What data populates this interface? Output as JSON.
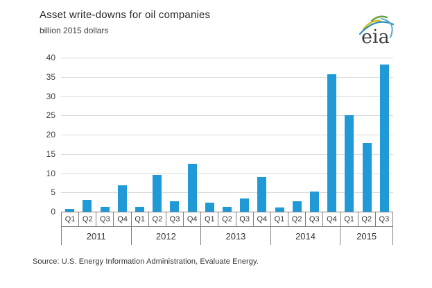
{
  "header": {
    "title": "Asset write-downs for oil companies",
    "subtitle": "billion 2015 dollars"
  },
  "logo": {
    "text": "eia"
  },
  "source": {
    "text": "Source:  U.S. Energy Information Administration, Evaluate Energy."
  },
  "colors": {
    "bar": "#1f9ad7",
    "gridline": "#d9d9d9",
    "axis_border": "#7f7f7f",
    "logo_blue": "#2e8fc0",
    "logo_green": "#66a03d",
    "logo_yellow": "#d4c021"
  },
  "chart_data": {
    "type": "bar",
    "title": "Asset write-downs for oil companies",
    "ylabel": "billion 2015 dollars",
    "xlabel": "",
    "ylim": [
      0,
      40
    ],
    "ytick_step": 5,
    "grid": true,
    "legend": "none",
    "categories": [
      "Q1",
      "Q2",
      "Q3",
      "Q4",
      "Q1",
      "Q2",
      "Q3",
      "Q4",
      "Q1",
      "Q2",
      "Q3",
      "Q4",
      "Q1",
      "Q2",
      "Q3",
      "Q4",
      "Q1",
      "Q2",
      "Q3"
    ],
    "year_groups": [
      {
        "label": "2011",
        "quarters": 4
      },
      {
        "label": "2012",
        "quarters": 4
      },
      {
        "label": "2013",
        "quarters": 4
      },
      {
        "label": "2014",
        "quarters": 4
      },
      {
        "label": "2015",
        "quarters": 3
      }
    ],
    "values": [
      0.8,
      3.0,
      1.2,
      6.8,
      1.3,
      9.5,
      2.7,
      12.5,
      2.4,
      1.2,
      3.4,
      9.0,
      1.1,
      2.8,
      5.2,
      35.6,
      25.1,
      17.9,
      38.2
    ]
  }
}
